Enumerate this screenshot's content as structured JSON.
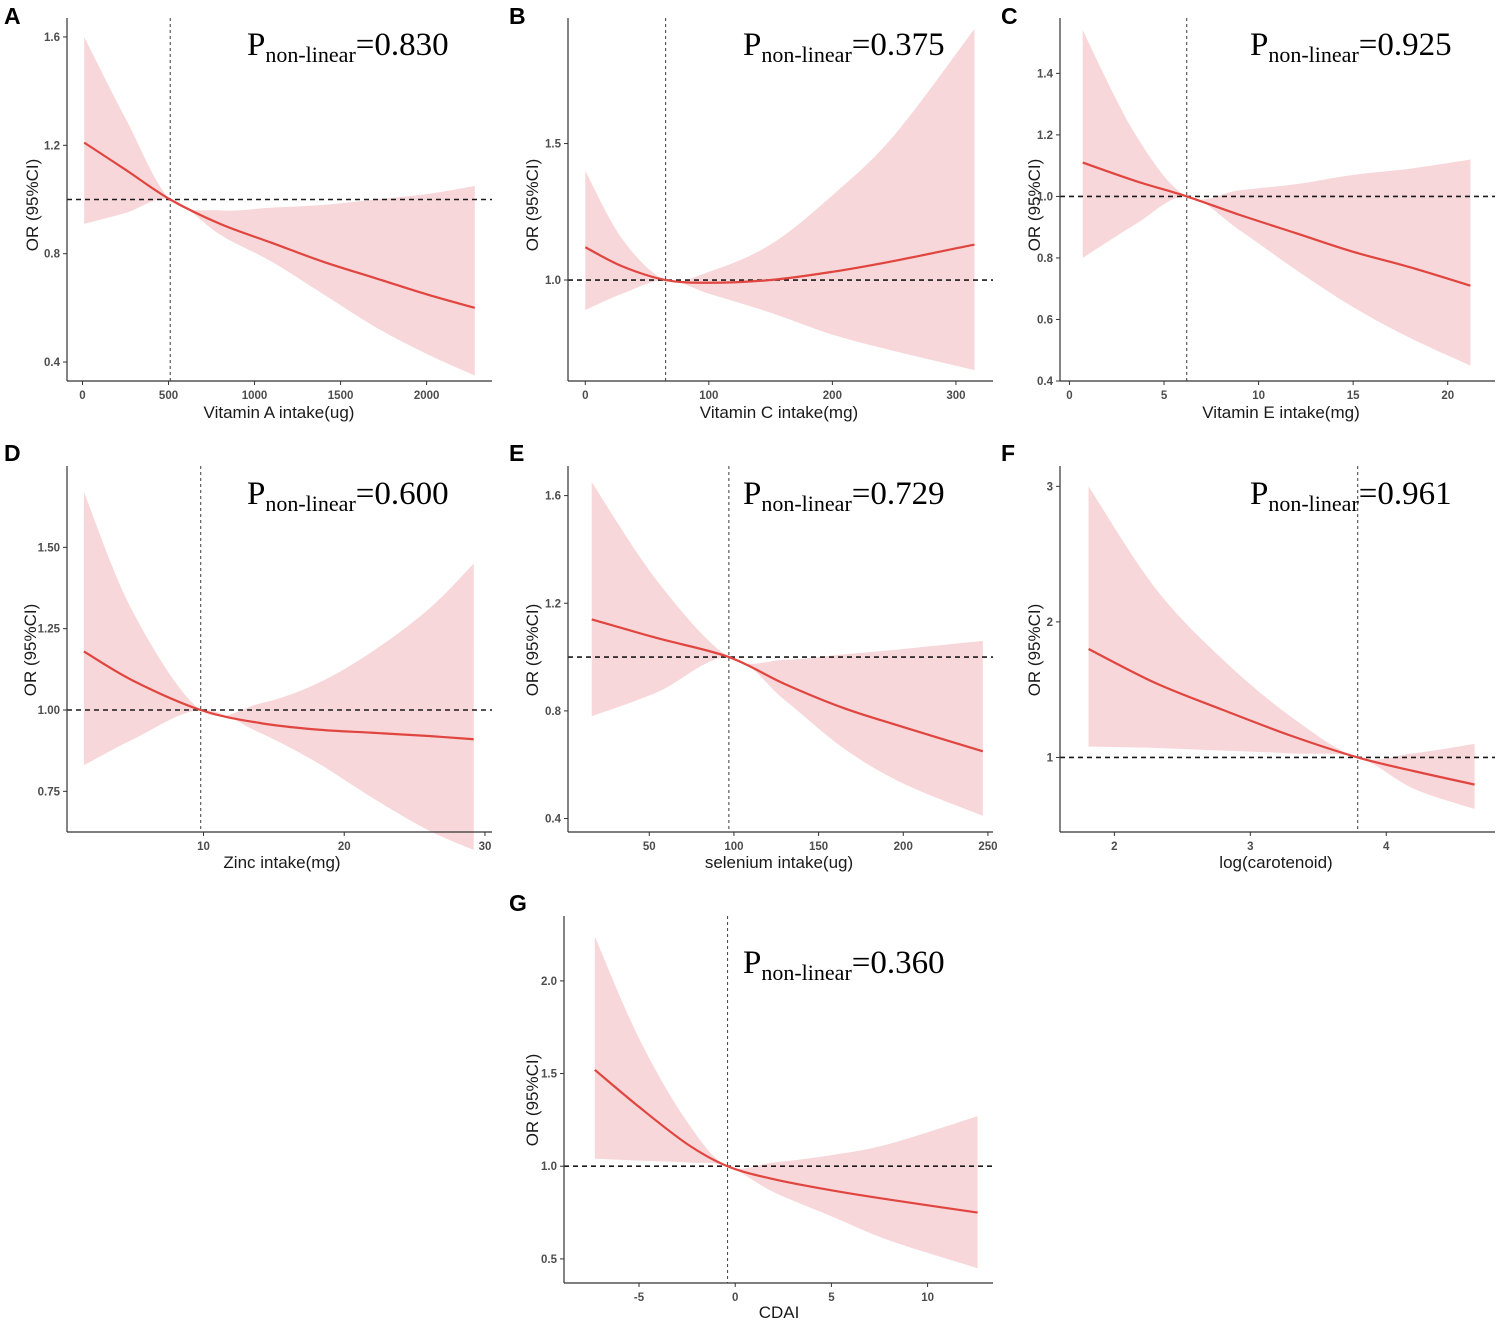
{
  "colors": {
    "line": "#e0453f",
    "band": "#f8d7da"
  },
  "chart_data": [
    {
      "type": "line",
      "panel": "A",
      "title_p": "P",
      "title_sub": "non-linear",
      "title_val": "=0.830",
      "xlabel": "Vitamin A intake(ug)",
      "ylabel": "OR (95%CI)",
      "xlim": [
        -90,
        2380
      ],
      "ylim": [
        0.33,
        1.67
      ],
      "xticks": [
        0,
        500,
        1000,
        1500,
        2000
      ],
      "xtick_labels": [
        "0",
        "500",
        "1000",
        "1500",
        "2000"
      ],
      "yticks": [
        0.4,
        0.8,
        1.2,
        1.6
      ],
      "ytick_labels": [
        "0.4",
        "0.8",
        "1.2",
        "1.6"
      ],
      "ref_x": 510,
      "ref_y": 1.0,
      "x": [
        10,
        250,
        510,
        800,
        1100,
        1400,
        1700,
        2000,
        2280
      ],
      "or": [
        1.21,
        1.11,
        1.0,
        0.91,
        0.84,
        0.77,
        0.71,
        0.65,
        0.6
      ],
      "lower": [
        0.91,
        0.95,
        1.0,
        0.87,
        0.77,
        0.65,
        0.53,
        0.43,
        0.35
      ],
      "upper": [
        1.6,
        1.3,
        1.0,
        0.96,
        0.97,
        0.98,
        1.0,
        1.02,
        1.05
      ]
    },
    {
      "type": "line",
      "panel": "B",
      "title_p": "P",
      "title_sub": "non-linear",
      "title_val": "=0.375",
      "xlabel": "Vitamin C intake(mg)",
      "ylabel": "OR (95%CI)",
      "xlim": [
        -14,
        330
      ],
      "ylim": [
        0.63,
        1.96
      ],
      "xticks": [
        0,
        100,
        200,
        300
      ],
      "xtick_labels": [
        "0",
        "100",
        "200",
        "300"
      ],
      "yticks": [
        1.0,
        1.5
      ],
      "ytick_labels": [
        "1.0",
        "1.5"
      ],
      "ref_x": 65,
      "ref_y": 1.0,
      "x": [
        0,
        30,
        65,
        100,
        150,
        200,
        250,
        315
      ],
      "or": [
        1.12,
        1.05,
        1.0,
        0.99,
        1.0,
        1.03,
        1.07,
        1.13
      ],
      "lower": [
        0.89,
        0.95,
        1.0,
        0.95,
        0.88,
        0.8,
        0.74,
        0.67
      ],
      "upper": [
        1.4,
        1.15,
        1.0,
        1.03,
        1.13,
        1.31,
        1.53,
        1.92
      ]
    },
    {
      "type": "line",
      "panel": "C",
      "title_p": "P",
      "title_sub": "non-linear",
      "title_val": "=0.925",
      "xlabel": "Vitamin E intake(mg)",
      "ylabel": "OR (95%CI)",
      "xlim": [
        -0.5,
        22.5
      ],
      "ylim": [
        0.4,
        1.58
      ],
      "xticks": [
        0,
        5,
        10,
        15,
        20
      ],
      "xtick_labels": [
        "0",
        "5",
        "10",
        "15",
        "20"
      ],
      "yticks": [
        0.4,
        0.6,
        0.8,
        1.0,
        1.2,
        1.4
      ],
      "ytick_labels": [
        "0.4",
        "0.6",
        "0.8",
        "1.0",
        "1.2",
        "1.4"
      ],
      "ref_x": 6.2,
      "ref_y": 1.0,
      "x": [
        0.7,
        3.5,
        6.2,
        9,
        12,
        15,
        18,
        21.2
      ],
      "or": [
        1.11,
        1.05,
        1.0,
        0.94,
        0.88,
        0.82,
        0.77,
        0.71
      ],
      "lower": [
        0.8,
        0.91,
        1.0,
        0.89,
        0.76,
        0.64,
        0.54,
        0.45
      ],
      "upper": [
        1.54,
        1.2,
        1.0,
        1.02,
        1.04,
        1.07,
        1.09,
        1.12
      ]
    },
    {
      "type": "line",
      "panel": "D",
      "title_p": "P",
      "title_sub": "non-linear",
      "title_val": "=0.600",
      "xlabel": "Zinc intake(mg)",
      "ylabel": "OR (95%CI)",
      "xlim": [
        0.3,
        30.5
      ],
      "ylim": [
        0.625,
        1.75
      ],
      "xticks": [
        10,
        20,
        30
      ],
      "xtick_labels": [
        "10",
        "20",
        "30"
      ],
      "yticks": [
        0.75,
        1.0,
        1.25,
        1.5
      ],
      "ytick_labels": [
        "0.75",
        "1.00",
        "1.25",
        "1.50"
      ],
      "ref_x": 9.8,
      "ref_y": 1.0,
      "x": [
        1.5,
        5,
        9.8,
        14,
        18,
        22,
        26,
        29.2
      ],
      "or": [
        1.18,
        1.09,
        1.0,
        0.96,
        0.94,
        0.93,
        0.92,
        0.91
      ],
      "lower": [
        0.83,
        0.91,
        1.0,
        0.93,
        0.84,
        0.73,
        0.63,
        0.57
      ],
      "upper": [
        1.67,
        1.3,
        1.0,
        1.02,
        1.08,
        1.18,
        1.31,
        1.45
      ]
    },
    {
      "type": "line",
      "panel": "E",
      "title_p": "P",
      "title_sub": "non-linear",
      "title_val": "=0.729",
      "xlabel": "selenium  intake(ug)",
      "ylabel": "OR (95%CI)",
      "xlim": [
        2,
        253
      ],
      "ylim": [
        0.35,
        1.71
      ],
      "xticks": [
        50,
        100,
        150,
        200,
        250
      ],
      "xtick_labels": [
        "50",
        "100",
        "150",
        "200",
        "250"
      ],
      "yticks": [
        0.4,
        0.8,
        1.2,
        1.6
      ],
      "ytick_labels": [
        "0.4",
        "0.8",
        "1.2",
        "1.6"
      ],
      "ref_x": 97,
      "ref_y": 1.0,
      "x": [
        16,
        55,
        97,
        130,
        165,
        200,
        247
      ],
      "or": [
        1.14,
        1.07,
        1.0,
        0.9,
        0.81,
        0.74,
        0.65
      ],
      "lower": [
        0.78,
        0.87,
        1.0,
        0.84,
        0.66,
        0.53,
        0.41
      ],
      "upper": [
        1.65,
        1.28,
        1.0,
        0.99,
        1.01,
        1.03,
        1.06
      ]
    },
    {
      "type": "line",
      "panel": "F",
      "title_p": "P",
      "title_sub": "non-linear",
      "title_val": "=0.961",
      "xlabel": "log(carotenoid)",
      "ylabel": "OR (95%CI)",
      "xlim": [
        1.6,
        4.8
      ],
      "ylim": [
        0.45,
        3.15
      ],
      "xticks": [
        2,
        3,
        4
      ],
      "xtick_labels": [
        "2",
        "3",
        "4"
      ],
      "yticks": [
        1,
        2,
        3
      ],
      "ytick_labels": [
        "1",
        "2",
        "3"
      ],
      "ref_x": 3.79,
      "ref_y": 1.0,
      "x": [
        1.81,
        2.3,
        2.8,
        3.3,
        3.79,
        4.2,
        4.65
      ],
      "or": [
        1.8,
        1.55,
        1.35,
        1.16,
        1.0,
        0.9,
        0.8
      ],
      "lower": [
        1.08,
        1.07,
        1.05,
        1.03,
        1.0,
        0.77,
        0.62
      ],
      "upper": [
        3.0,
        2.25,
        1.72,
        1.3,
        1.0,
        1.03,
        1.1
      ]
    },
    {
      "type": "line",
      "panel": "G",
      "title_p": "P",
      "title_sub": "non-linear",
      "title_val": "=0.360",
      "xlabel": "CDAI",
      "ylabel": "OR (95%CI)",
      "xlim": [
        -8.9,
        13.4
      ],
      "ylim": [
        0.37,
        2.35
      ],
      "xticks": [
        -5,
        0,
        5,
        10
      ],
      "xtick_labels": [
        "-5",
        "0",
        "5",
        "10"
      ],
      "yticks": [
        0.5,
        1.0,
        1.5,
        2.0
      ],
      "ytick_labels": [
        "0.5",
        "1.0",
        "1.5",
        "2.0"
      ],
      "ref_x": -0.4,
      "ref_y": 1.0,
      "x": [
        -7.3,
        -5,
        -2.5,
        -0.4,
        2,
        5,
        8,
        12.6
      ],
      "or": [
        1.52,
        1.32,
        1.12,
        1.0,
        0.93,
        0.87,
        0.82,
        0.75
      ],
      "lower": [
        1.04,
        1.03,
        1.02,
        1.0,
        0.86,
        0.73,
        0.6,
        0.45
      ],
      "upper": [
        2.24,
        1.69,
        1.24,
        1.0,
        1.02,
        1.06,
        1.12,
        1.27
      ]
    }
  ]
}
